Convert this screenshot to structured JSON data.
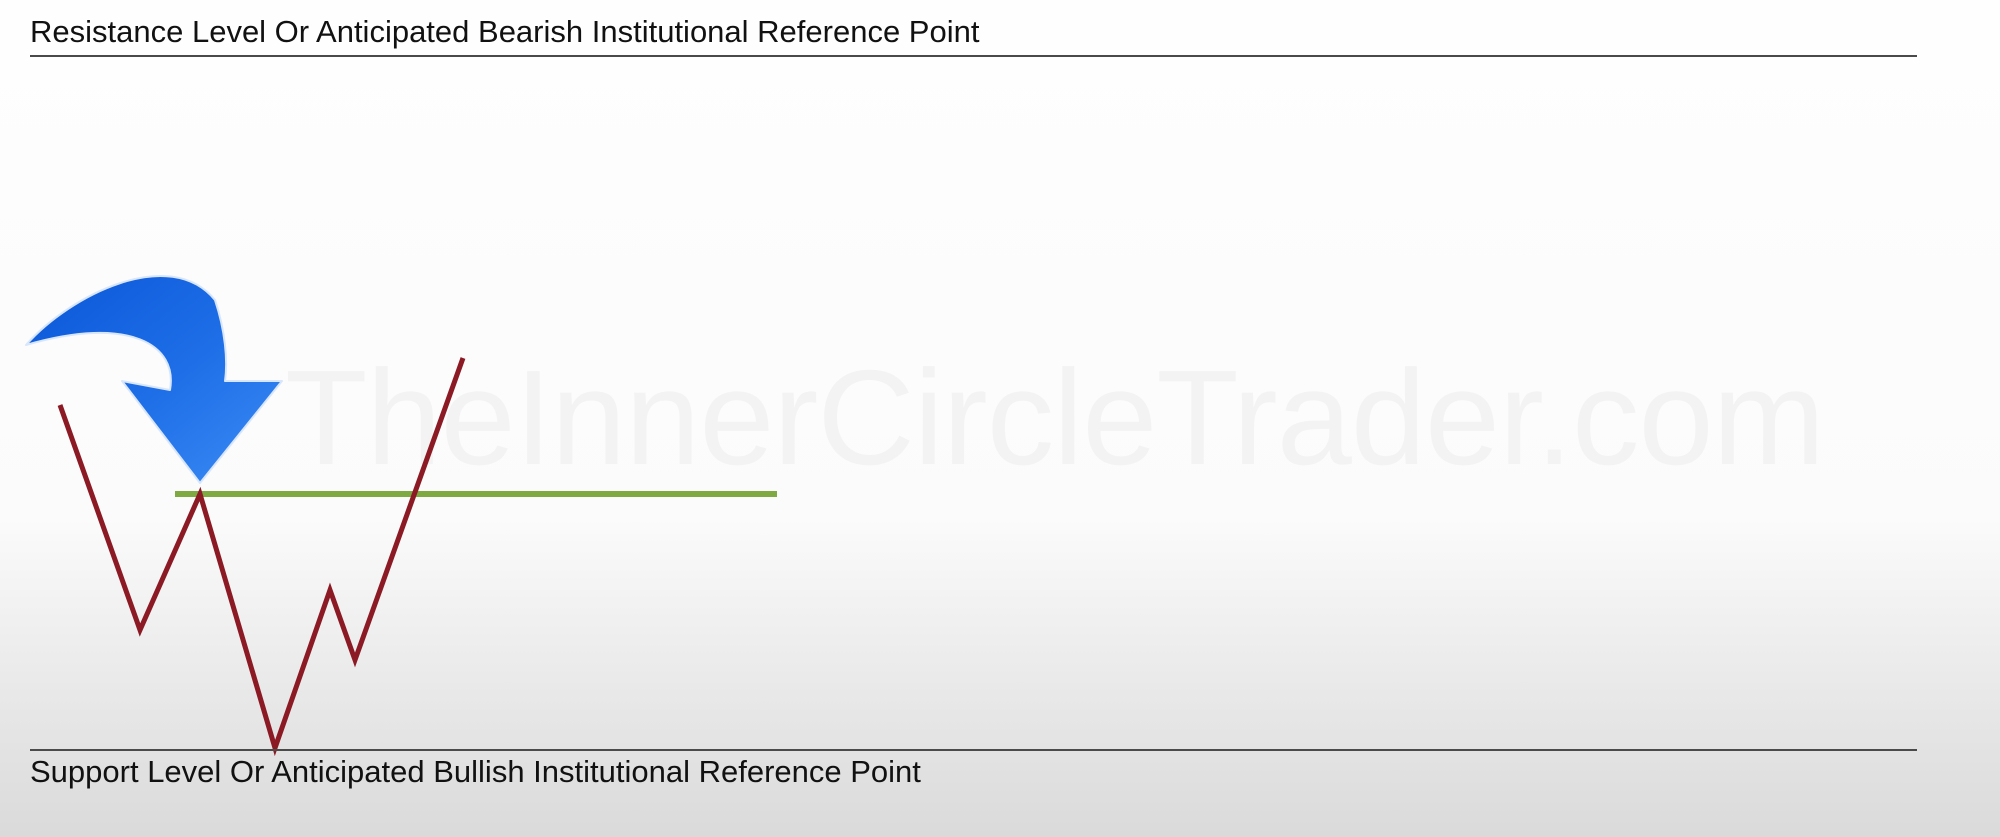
{
  "watermark": "TheInnerCircleTrader.com",
  "resistance": {
    "label": "Resistance Level Or Anticipated Bearish Institutional Reference Point"
  },
  "support": {
    "label": "Support Level Or Anticipated Bullish Institutional Reference Point"
  },
  "colors": {
    "price_path": "#8b1a24",
    "reference_line": "#7faa42",
    "arrow": "#1f6fe8",
    "level_lines": "#4a4a4a"
  },
  "icons": {
    "arrow": "curved-down-arrow-icon"
  }
}
